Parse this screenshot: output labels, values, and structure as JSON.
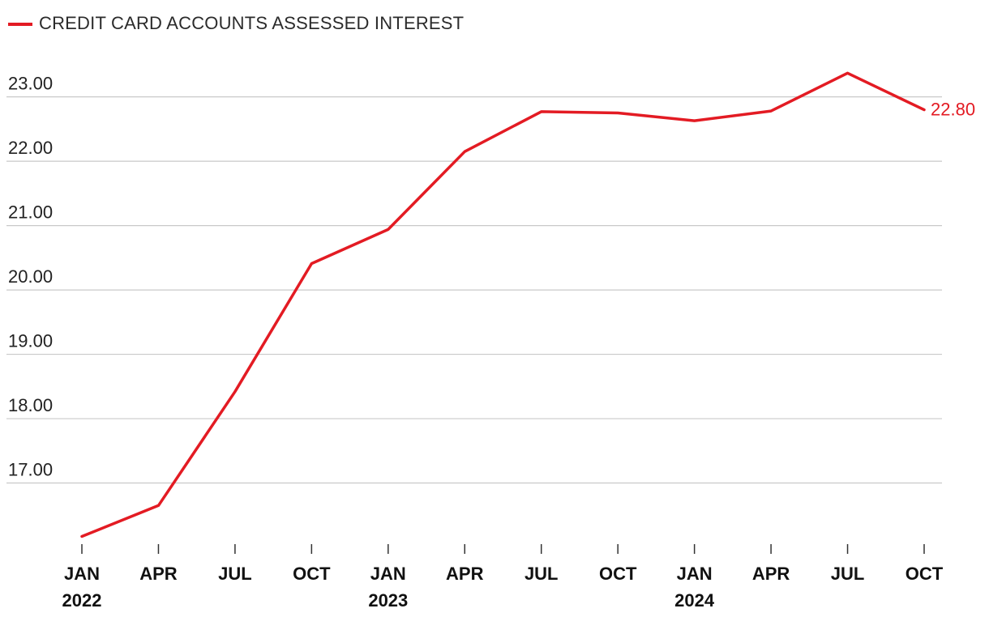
{
  "legend": {
    "label": "CREDIT CARD ACCOUNTS ASSESSED INTEREST",
    "color": "#e31b23"
  },
  "chart_data": {
    "type": "line",
    "title": "",
    "xlabel": "",
    "ylabel": "",
    "categories": [
      "JAN 2022",
      "APR 2022",
      "JUL 2022",
      "OCT 2022",
      "JAN 2023",
      "APR 2023",
      "JUL 2023",
      "OCT 2023",
      "JAN 2024",
      "APR 2024",
      "JUL 2024",
      "OCT 2024"
    ],
    "x_tick_labels": [
      {
        "month": "JAN",
        "year": "2022"
      },
      {
        "month": "APR",
        "year": ""
      },
      {
        "month": "JUL",
        "year": ""
      },
      {
        "month": "OCT",
        "year": ""
      },
      {
        "month": "JAN",
        "year": "2023"
      },
      {
        "month": "APR",
        "year": ""
      },
      {
        "month": "JUL",
        "year": ""
      },
      {
        "month": "OCT",
        "year": ""
      },
      {
        "month": "JAN",
        "year": "2024"
      },
      {
        "month": "APR",
        "year": ""
      },
      {
        "month": "JUL",
        "year": ""
      },
      {
        "month": "OCT",
        "year": ""
      }
    ],
    "series": [
      {
        "name": "CREDIT CARD ACCOUNTS ASSESSED INTEREST",
        "color": "#e31b23",
        "values": [
          16.17,
          16.65,
          18.42,
          20.41,
          20.94,
          22.15,
          22.77,
          22.75,
          22.63,
          22.78,
          23.37,
          22.8
        ]
      }
    ],
    "y_ticks": [
      17,
      18,
      19,
      20,
      21,
      22,
      23
    ],
    "y_tick_labels": [
      "17.00",
      "18.00",
      "19.00",
      "20.00",
      "21.00",
      "22.00",
      "23.00"
    ],
    "ylim": [
      16.0,
      23.65
    ],
    "grid": true,
    "legend_position": "top-left",
    "end_label": "22.80"
  }
}
